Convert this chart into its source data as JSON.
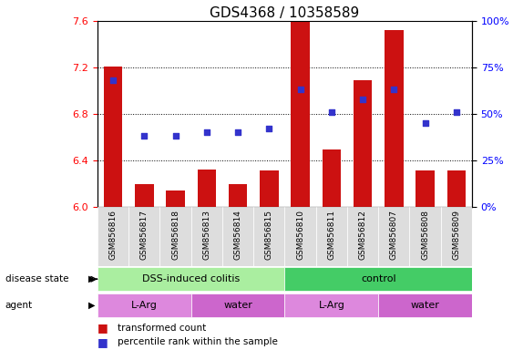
{
  "title": "GDS4368 / 10358589",
  "samples": [
    "GSM856816",
    "GSM856817",
    "GSM856818",
    "GSM856813",
    "GSM856814",
    "GSM856815",
    "GSM856810",
    "GSM856811",
    "GSM856812",
    "GSM856807",
    "GSM856808",
    "GSM856809"
  ],
  "bar_values": [
    7.21,
    6.19,
    6.14,
    6.32,
    6.19,
    6.31,
    7.6,
    6.49,
    7.09,
    7.52,
    6.31,
    6.31
  ],
  "percentile_values": [
    68,
    38,
    38,
    40,
    40,
    42,
    63,
    51,
    58,
    63,
    45,
    51
  ],
  "ylim_left": [
    6.0,
    7.6
  ],
  "ylim_right": [
    0,
    100
  ],
  "yticks_left": [
    6.0,
    6.4,
    6.8,
    7.2,
    7.6
  ],
  "yticks_right": [
    0,
    25,
    50,
    75,
    100
  ],
  "bar_color": "#cc1111",
  "dot_color": "#3333cc",
  "bar_width": 0.6,
  "disease_state_groups": [
    {
      "label": "DSS-induced colitis",
      "start": 0,
      "end": 6,
      "color": "#aaeea0"
    },
    {
      "label": "control",
      "start": 6,
      "end": 12,
      "color": "#44cc66"
    }
  ],
  "agent_groups": [
    {
      "label": "L-Arg",
      "start": 0,
      "end": 3,
      "color": "#dd88dd"
    },
    {
      "label": "water",
      "start": 3,
      "end": 6,
      "color": "#cc66cc"
    },
    {
      "label": "L-Arg",
      "start": 6,
      "end": 9,
      "color": "#dd88dd"
    },
    {
      "label": "water",
      "start": 9,
      "end": 12,
      "color": "#cc66cc"
    }
  ],
  "legend_items": [
    {
      "label": "transformed count",
      "color": "#cc1111"
    },
    {
      "label": "percentile rank within the sample",
      "color": "#3333cc"
    }
  ],
  "row_label_disease": "disease state",
  "row_label_agent": "agent",
  "grid_style": "dotted",
  "title_fontsize": 11,
  "tick_fontsize": 8,
  "label_fontsize": 8.5
}
